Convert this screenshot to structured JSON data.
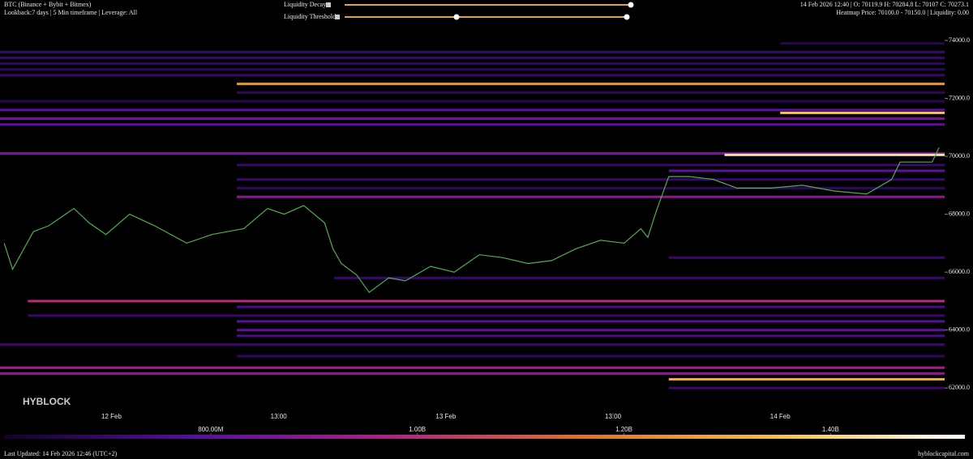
{
  "header": {
    "symbol": "BTC (Binance + Bybit + Bitmex)",
    "settings": "Lookback:7 days | 5 Min timeframe | Leverage: All",
    "ohlc": "14 Feb 2026 12:40 | O: 70119.9 H: 70284.8 L: 70107 C: 70273.1",
    "heatmap_info": "Heatmap Price: 70100.0 - 70150.0 | Liquidity: 0.00",
    "decay_label": "Liquidity Decay",
    "threshold_label": "Liquidity Threshold"
  },
  "chart_data": {
    "type": "heatmap",
    "watermark": "HYBLOCK",
    "ylim": [
      61700,
      74140
    ],
    "yticks": [
      {
        "value": 62000,
        "label": "62000.0"
      },
      {
        "value": 64000,
        "label": "64000.0"
      },
      {
        "value": 66000,
        "label": "66000.0"
      },
      {
        "value": 68000,
        "label": "68000.0"
      },
      {
        "value": 70000,
        "label": "70000.0"
      },
      {
        "value": 72000,
        "label": "72000.0"
      },
      {
        "value": 74000,
        "label": "74000.0"
      }
    ],
    "xlim": [
      -8,
      59.8
    ],
    "xticks": [
      {
        "value": 0,
        "label": "12 Feb"
      },
      {
        "value": 12,
        "label": "13:00"
      },
      {
        "value": 24,
        "label": "13 Feb"
      },
      {
        "value": 36,
        "label": "13:00"
      },
      {
        "value": 48,
        "label": "14 Feb"
      }
    ],
    "price": {
      "color": "#4caf50",
      "x": [
        -7.7,
        -7.1,
        -5.6,
        -4.5,
        -2.7,
        -1.6,
        -0.4,
        1.3,
        3.1,
        5.4,
        7.2,
        9.5,
        11.2,
        12.4,
        13.8,
        15.3,
        15.9,
        16.5,
        17.6,
        18.5,
        19.9,
        21.1,
        22.9,
        24.6,
        26.4,
        28.1,
        29.9,
        31.6,
        33.3,
        35.1,
        36.8,
        38.0,
        38.5,
        39.1,
        40.0,
        41.5,
        43.2,
        44.9,
        47.3,
        49.6,
        51.9,
        54.2,
        56.0,
        56.6,
        57.7,
        58.9,
        59.4
      ],
      "values": [
        67000,
        66100,
        67400,
        67600,
        68200,
        67700,
        67300,
        68000,
        67600,
        67000,
        67300,
        67500,
        68200,
        68000,
        68300,
        67700,
        66800,
        66300,
        65900,
        65300,
        65800,
        65700,
        66200,
        66000,
        66600,
        66500,
        66300,
        66400,
        66800,
        67100,
        67000,
        67500,
        67200,
        68100,
        69300,
        69300,
        69200,
        68900,
        68900,
        69000,
        68800,
        68700,
        69200,
        69800,
        69800,
        69800,
        70300
      ]
    },
    "heatmap": {
      "prices": [
        73900,
        73600,
        73400,
        73200,
        73000,
        72800,
        72500,
        72200,
        71900,
        71600,
        71500,
        71300,
        71100,
        70100,
        70050,
        69700,
        69500,
        69200,
        68900,
        68600,
        66500,
        65800,
        65000,
        64800,
        64500,
        64300,
        64000,
        63800,
        63500,
        63100,
        62700,
        62500,
        62300,
        62000
      ],
      "starts": [
        48,
        -8,
        -8,
        -8,
        -8,
        -8,
        9,
        9,
        -8,
        -8,
        48,
        -8,
        -8,
        -8,
        44,
        9,
        40,
        9,
        9,
        9,
        40,
        16,
        -6,
        9,
        -6,
        9,
        9,
        9,
        -8,
        9,
        -8,
        -8,
        40,
        40
      ],
      "liquidity": [
        650000000,
        700000000,
        700000000,
        680000000,
        680000000,
        700000000,
        1250000000,
        680000000,
        660000000,
        800000000,
        1350000000,
        850000000,
        800000000,
        850000000,
        1450000000,
        700000000,
        800000000,
        700000000,
        680000000,
        900000000,
        700000000,
        700000000,
        1000000000,
        750000000,
        700000000,
        780000000,
        800000000,
        750000000,
        700000000,
        680000000,
        950000000,
        900000000,
        1300000000,
        700000000
      ]
    },
    "colorscale": [
      "#14002e",
      "#5a0fa0",
      "#b0208a",
      "#e0702a",
      "#f4c040",
      "#ffffff"
    ],
    "clim": [
      600000000,
      1530000000
    ],
    "cticks": [
      {
        "value": 800000000,
        "label": "800.00M"
      },
      {
        "value": 1000000000,
        "label": "1.00B"
      },
      {
        "value": 1200000000,
        "label": "1.20B"
      },
      {
        "value": 1400000000,
        "label": "1.40B"
      }
    ]
  },
  "footer": {
    "updated": "Last Updated: 14 Feb 2026 12:46 (UTC+2)",
    "site": "hyblockcapital.com"
  }
}
